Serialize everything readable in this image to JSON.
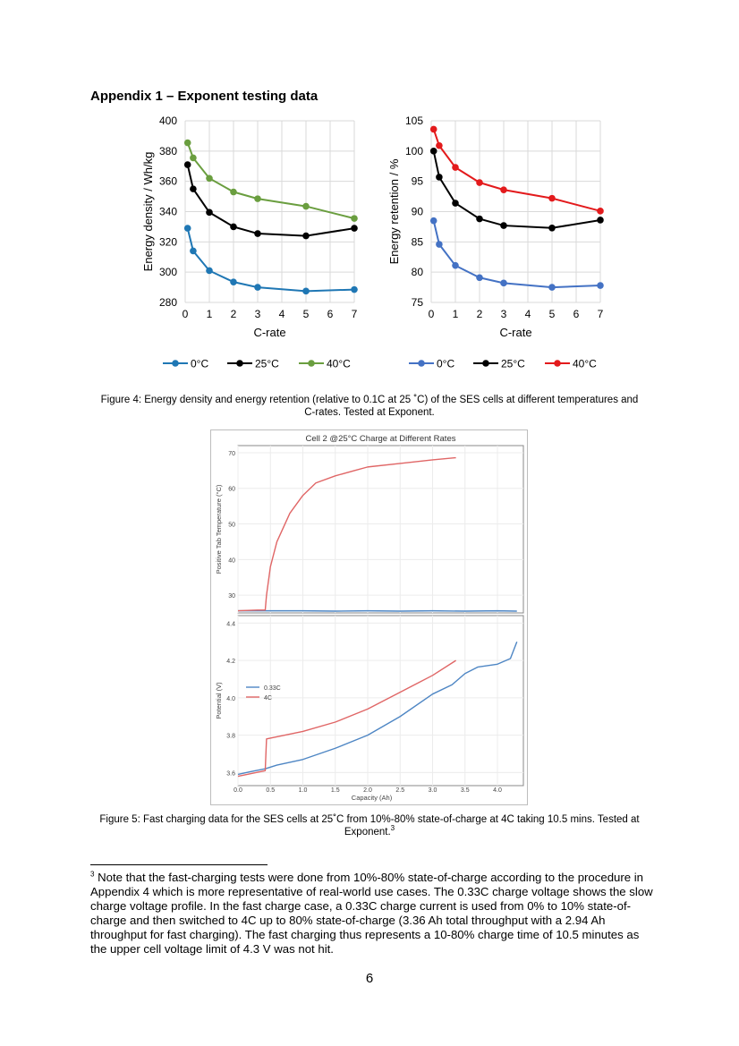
{
  "heading": "Appendix 1 – Exponent testing data",
  "chart_data": [
    {
      "type": "line",
      "ylabel": "Energy density / Wh/kg",
      "xlabel": "C-rate",
      "xlim": [
        0,
        7
      ],
      "ylim": [
        280,
        400
      ],
      "xticks": [
        0,
        1,
        2,
        3,
        4,
        5,
        6,
        7
      ],
      "yticks": [
        280,
        300,
        320,
        340,
        360,
        380,
        400
      ],
      "grid": true,
      "legend": "bottom",
      "series": [
        {
          "name": "0°C",
          "color": "#1f77b4",
          "x": [
            0.1,
            0.33,
            1,
            2,
            3,
            5,
            7
          ],
          "values": [
            329,
            314,
            301,
            293.5,
            290,
            287.5,
            288.5
          ]
        },
        {
          "name": "25°C",
          "color": "#000000",
          "x": [
            0.1,
            0.33,
            1,
            2,
            3,
            5,
            7
          ],
          "values": [
            371,
            355,
            339.5,
            330,
            325.5,
            324,
            329
          ]
        },
        {
          "name": "40°C",
          "color": "#6a9e3f",
          "x": [
            0.1,
            0.33,
            1,
            2,
            3,
            5,
            7
          ],
          "values": [
            385.5,
            375.5,
            362,
            353,
            348.5,
            343.5,
            335.5
          ]
        }
      ]
    },
    {
      "type": "line",
      "ylabel": "Energy retention / %",
      "xlabel": "C-rate",
      "xlim": [
        0,
        7
      ],
      "ylim": [
        75,
        105
      ],
      "xticks": [
        0,
        1,
        2,
        3,
        4,
        5,
        6,
        7
      ],
      "yticks": [
        75,
        80,
        85,
        90,
        95,
        100,
        105
      ],
      "grid": true,
      "legend": "bottom",
      "series": [
        {
          "name": "0°C",
          "color": "#4472c4",
          "x": [
            0.1,
            0.33,
            1,
            2,
            3,
            5,
            7
          ],
          "values": [
            88.5,
            84.6,
            81.1,
            79.1,
            78.2,
            77.5,
            77.8
          ]
        },
        {
          "name": "25°C",
          "color": "#000000",
          "x": [
            0.1,
            0.33,
            1,
            2,
            3,
            5,
            7
          ],
          "values": [
            100,
            95.7,
            91.4,
            88.8,
            87.7,
            87.3,
            88.6
          ]
        },
        {
          "name": "40°C",
          "color": "#e31a1c",
          "x": [
            0.1,
            0.33,
            1,
            2,
            3,
            5,
            7
          ],
          "values": [
            103.6,
            100.9,
            97.3,
            94.8,
            93.6,
            92.2,
            90.1
          ]
        }
      ]
    },
    {
      "type": "line",
      "title": "Cell 2 @25°C Charge at Different Rates",
      "panels": [
        {
          "ylabel": "Positive Tab Temperature (°C)",
          "ylim": [
            25,
            72
          ],
          "yticks": [
            30,
            40,
            50,
            60,
            70
          ],
          "series": [
            {
              "name": "0.33C",
              "color": "#4e86c4",
              "x": [
                0,
                0.5,
                1,
                1.5,
                2,
                2.5,
                3,
                3.5,
                4,
                4.3
              ],
              "values": [
                25.6,
                25.6,
                25.6,
                25.5,
                25.6,
                25.5,
                25.6,
                25.5,
                25.6,
                25.5
              ]
            },
            {
              "name": "4C",
              "color": "#e06666",
              "x": [
                0,
                0.3,
                0.42,
                0.44,
                0.5,
                0.6,
                0.8,
                1.0,
                1.2,
                1.5,
                1.8,
                2.0,
                2.5,
                3.0,
                3.36
              ],
              "values": [
                25.6,
                25.8,
                25.8,
                30,
                38,
                45,
                53,
                58,
                61.5,
                63.5,
                65,
                66,
                67,
                68,
                68.6
              ]
            }
          ]
        },
        {
          "ylabel": "Potential (V)",
          "xlabel": "Capacity (Ah)",
          "xlim": [
            0,
            4.4
          ],
          "ylim": [
            3.53,
            4.44
          ],
          "xticks": [
            "0.0",
            "0.5",
            "1.0",
            "1.5",
            "2.0",
            "2.5",
            "3.0",
            "3.5",
            "4.0"
          ],
          "yticks": [
            "3.6",
            "3.8",
            "4.0",
            "4.2",
            "4.4"
          ],
          "series": [
            {
              "name": "0.33C",
              "color": "#4e86c4",
              "x": [
                0,
                0.2,
                0.42,
                0.6,
                1.0,
                1.5,
                2.0,
                2.5,
                3.0,
                3.3,
                3.5,
                3.7,
                4.0,
                4.2,
                4.3
              ],
              "values": [
                3.59,
                3.605,
                3.62,
                3.64,
                3.67,
                3.73,
                3.8,
                3.9,
                4.02,
                4.07,
                4.13,
                4.165,
                4.18,
                4.21,
                4.3
              ]
            },
            {
              "name": "4C",
              "color": "#e06666",
              "x": [
                0,
                0.42,
                0.44,
                1.0,
                1.5,
                2.0,
                2.5,
                3.0,
                3.36
              ],
              "values": [
                3.58,
                3.61,
                3.78,
                3.82,
                3.87,
                3.94,
                4.03,
                4.12,
                4.2
              ]
            }
          ]
        }
      ],
      "legend_entries": [
        "0.33C",
        "4C"
      ]
    }
  ],
  "caption4": "Figure 4: Energy density and energy retention (relative to 0.1C at 25 ˚C) of the SES cells at different temperatures and C-rates. Tested at Exponent.",
  "caption5": "Figure 5: Fast charging data for the SES cells at 25˚C from 10%-80% state-of-charge at 4C taking 10.5 mins. Tested at Exponent.",
  "caption5_ref": "3",
  "footnote_marker": "3",
  "footnote": "Note that the fast-charging tests were done from 10%-80% state-of-charge according to the procedure in Appendix 4 which is more representative of real-world use cases. The 0.33C charge voltage shows the slow charge voltage profile. In the fast charge case, a 0.33C charge current is used from 0% to 10% state-of-charge and then switched to 4C up to 80% state-of-charge (3.36 Ah total throughput with a 2.94 Ah throughput for fast charging). The fast charging thus represents a 10-80% charge time of 10.5 minutes as the upper cell voltage limit of 4.3 V was not hit.",
  "page_number": "6"
}
